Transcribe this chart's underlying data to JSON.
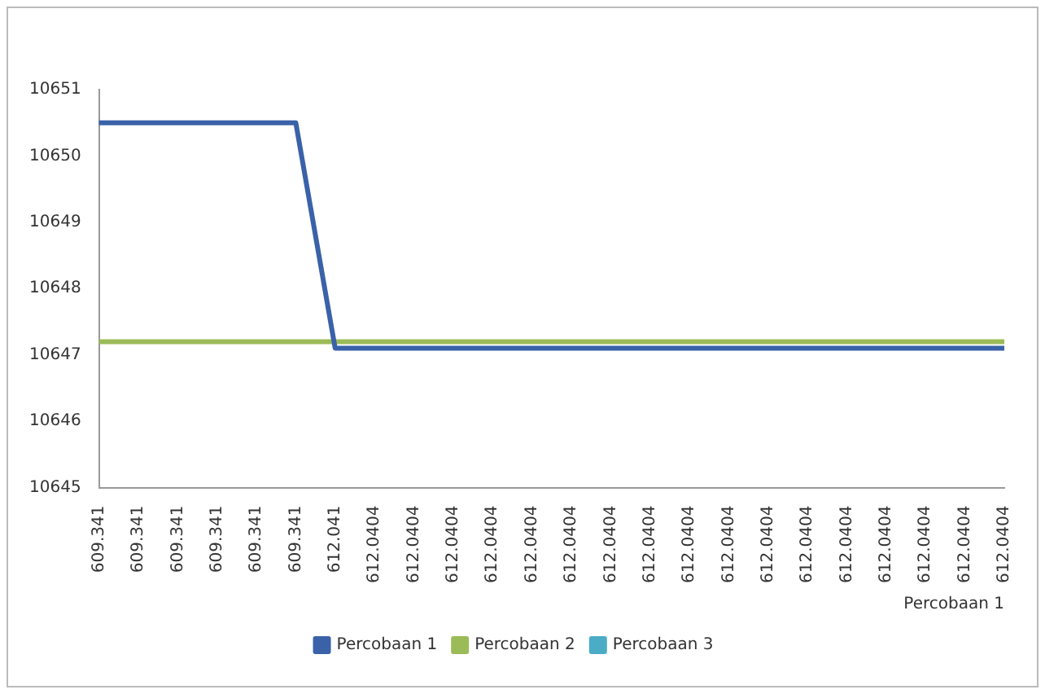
{
  "chart_data": {
    "type": "line",
    "xlabel": "Percobaan 1",
    "categories": [
      "609.341",
      "609.341",
      "609.341",
      "609.341",
      "609.341",
      "609.341",
      "612.041",
      "612.0404",
      "612.0404",
      "612.0404",
      "612.0404",
      "612.0404",
      "612.0404",
      "612.0404",
      "612.0404",
      "612.0404",
      "612.0404",
      "612.0404",
      "612.0404",
      "612.0404",
      "612.0404",
      "612.0404",
      "612.0404",
      "612.0404"
    ],
    "series": [
      {
        "name": "Percobaan 1",
        "color": "#3a62a8",
        "values": [
          10650.5,
          10650.5,
          10650.5,
          10650.5,
          10650.5,
          10650.5,
          10647.1,
          10647.1,
          10647.1,
          10647.1,
          10647.1,
          10647.1,
          10647.1,
          10647.1,
          10647.1,
          10647.1,
          10647.1,
          10647.1,
          10647.1,
          10647.1,
          10647.1,
          10647.1,
          10647.1,
          10647.1
        ]
      },
      {
        "name": "Percobaan 2",
        "color": "#9bbb59",
        "values": [
          10647.2,
          10647.2,
          10647.2,
          10647.2,
          10647.2,
          10647.2,
          10647.2,
          10647.2,
          10647.2,
          10647.2,
          10647.2,
          10647.2,
          10647.2,
          10647.2,
          10647.2,
          10647.2,
          10647.2,
          10647.2,
          10647.2,
          10647.2,
          10647.2,
          10647.2,
          10647.2,
          10647.2
        ]
      },
      {
        "name": "Percobaan 3",
        "color": "#4bacc6",
        "values": [
          null,
          null,
          null,
          null,
          null,
          null,
          null,
          null,
          null,
          null,
          null,
          null,
          null,
          null,
          null,
          null,
          null,
          null,
          null,
          null,
          null,
          null,
          null,
          null
        ]
      }
    ],
    "ylim": [
      10645,
      10651
    ],
    "yticks": [
      10645,
      10646,
      10647,
      10648,
      10649,
      10650,
      10651
    ],
    "grid": false,
    "legend": "bottom",
    "marker": "none",
    "line_style": "solid"
  }
}
